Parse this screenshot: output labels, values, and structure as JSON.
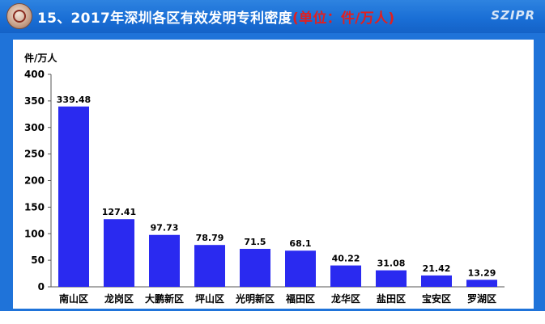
{
  "header": {
    "title_main": "15、2017年深圳各区有效发明专利密度",
    "title_unit": "(单位：件/万人)",
    "brand": "SZIPR"
  },
  "colors": {
    "header_blue": "#1a6fd6",
    "bar": "#2a2af0",
    "unit_red": "#e02020"
  },
  "chart_data": {
    "type": "bar",
    "ylabel": "件/万人",
    "ylim": [
      0,
      400
    ],
    "yticks": [
      0,
      50,
      100,
      150,
      200,
      250,
      300,
      350,
      400
    ],
    "categories": [
      "南山区",
      "龙岗区",
      "大鹏新区",
      "坪山区",
      "光明新区",
      "福田区",
      "龙华区",
      "盐田区",
      "宝安区",
      "罗湖区"
    ],
    "values": [
      339.48,
      127.41,
      97.73,
      78.79,
      71.5,
      68.1,
      40.22,
      31.08,
      21.42,
      13.29
    ],
    "data_labels": [
      "339.48",
      "127.41",
      "97.73",
      "78.79",
      "71.5",
      "68.1",
      "40.22",
      "31.08",
      "21.42",
      "13.29"
    ],
    "grid": false,
    "legend": "none"
  }
}
